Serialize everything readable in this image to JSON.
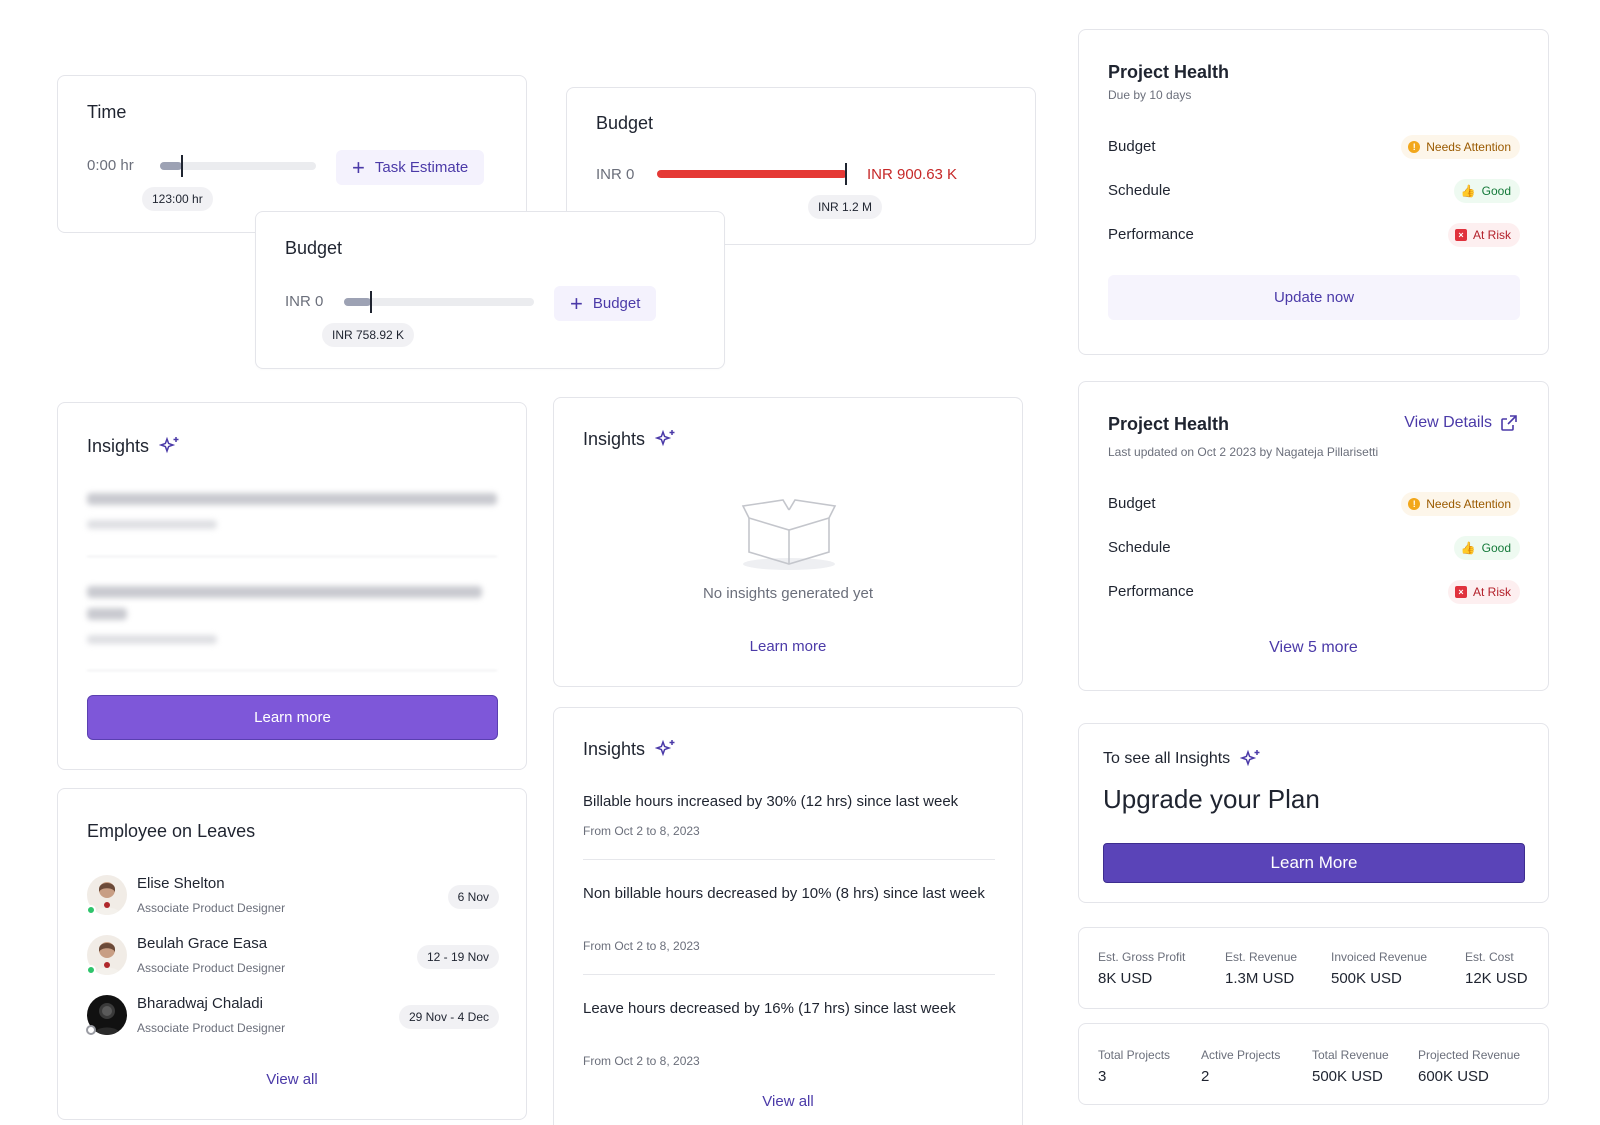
{
  "time_card": {
    "title": "Time",
    "start_label": "0:00 hr",
    "value_chip": "123:00 hr",
    "button_label": "Task Estimate",
    "progress": 0.14
  },
  "budget_card_small": {
    "title": "Budget",
    "start_label": "INR 0",
    "value_chip": "INR 758.92 K",
    "button_label": "Budget",
    "progress": 0.14
  },
  "budget_card_over": {
    "title": "Budget",
    "start_label": "INR 0",
    "end_label": "INR 900.63 K",
    "value_chip": "INR 1.2 M",
    "progress": 1.0,
    "colors": {
      "fill": "#e53935",
      "end_text": "#c62828"
    }
  },
  "project_health_1": {
    "title": "Project Health",
    "subtitle": "Due by 10 days",
    "rows": [
      {
        "label": "Budget",
        "status": "Needs Attention",
        "kind": "warn"
      },
      {
        "label": "Schedule",
        "status": "Good",
        "kind": "good"
      },
      {
        "label": "Performance",
        "status": "At Risk",
        "kind": "risk"
      }
    ],
    "button_label": "Update now"
  },
  "project_health_2": {
    "title": "Project Health",
    "view_details": "View Details",
    "subtitle": "Last updated on Oct 2 2023 by Nagateja Pillarisetti",
    "rows": [
      {
        "label": "Budget",
        "status": "Needs Attention",
        "kind": "warn"
      },
      {
        "label": "Schedule",
        "status": "Good",
        "kind": "good"
      },
      {
        "label": "Performance",
        "status": "At Risk",
        "kind": "risk"
      }
    ],
    "view_more": "View 5 more"
  },
  "insights_blurred": {
    "title": "Insights",
    "button_label": "Learn more"
  },
  "insights_empty": {
    "title": "Insights",
    "empty_text": "No insights generated yet",
    "link": "Learn more"
  },
  "insights_list": {
    "title": "Insights",
    "items": [
      {
        "text": "Billable hours increased by 30% (12 hrs) since last week",
        "date": "From Oct 2 to 8, 2023"
      },
      {
        "text": "Non billable hours decreased by 10% (8 hrs) since last week",
        "date": "From Oct 2 to 8, 2023"
      },
      {
        "text": "Leave hours decreased by 16% (17 hrs) since last week",
        "date": "From Oct 2 to 8, 2023"
      }
    ],
    "view_all": "View all"
  },
  "leaves": {
    "title": "Employee on Leaves",
    "employees": [
      {
        "name": "Elise Shelton",
        "role": "Associate Product Designer",
        "dates": "6 Nov"
      },
      {
        "name": "Beulah Grace Easa",
        "role": "Associate Product Designer",
        "dates": "12 - 19 Nov"
      },
      {
        "name": "Bharadwaj Chaladi",
        "role": "Associate Product Designer",
        "dates": "29 Nov  - 4 Dec"
      }
    ],
    "view_all": "View all"
  },
  "upgrade": {
    "prompt": "To see all Insights",
    "title": "Upgrade your Plan",
    "button_label": "Learn More"
  },
  "stats_1": [
    {
      "label": "Est. Gross Profit",
      "value": "8K USD"
    },
    {
      "label": "Est. Revenue",
      "value": "1.3M USD"
    },
    {
      "label": "Invoiced Revenue",
      "value": "500K USD"
    },
    {
      "label": "Est. Cost",
      "value": "12K USD"
    }
  ],
  "stats_2": [
    {
      "label": "Total Projects",
      "value": "3"
    },
    {
      "label": "Active Projects",
      "value": "2"
    },
    {
      "label": "Total Revenue",
      "value": "500K USD"
    },
    {
      "label": "Projected Revenue",
      "value": "600K USD"
    }
  ],
  "colors": {
    "accent": "#4b3aa8",
    "primary_button": "#7e57d9",
    "upgrade_button": "#5a44b8"
  }
}
